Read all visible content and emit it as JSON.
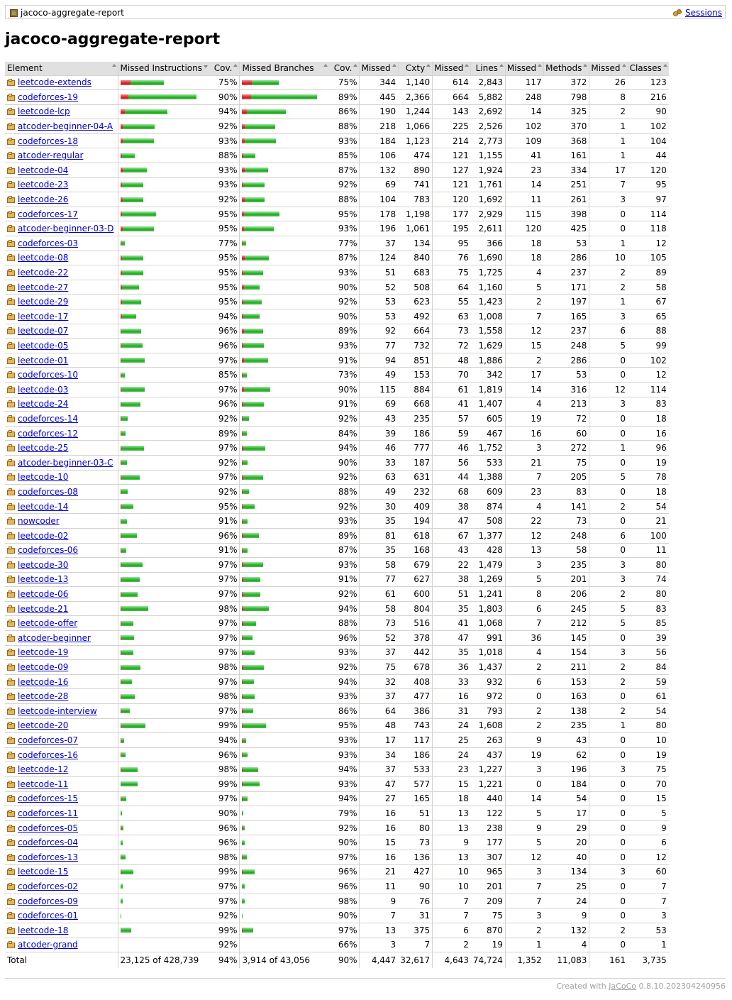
{
  "breadcrumb": {
    "title": "jacoco-aggregate-report",
    "sessions": "Sessions"
  },
  "heading": "jacoco-aggregate-report",
  "header": [
    "Element",
    "Missed Instructions",
    "Cov.",
    "Missed Branches",
    "Cov.",
    "Missed",
    "Cxty",
    "Missed",
    "Lines",
    "Missed",
    "Methods",
    "Missed",
    "Classes"
  ],
  "rows": [
    [
      "leetcode-extends",
      "75%",
      "75%",
      "344",
      "1,140",
      "614",
      "2,843",
      "117",
      "372",
      "26",
      "123"
    ],
    [
      "codeforces-19",
      "90%",
      "89%",
      "445",
      "2,366",
      "664",
      "5,882",
      "248",
      "798",
      "8",
      "216"
    ],
    [
      "leetcode-lcp",
      "94%",
      "86%",
      "190",
      "1,244",
      "143",
      "2,692",
      "14",
      "325",
      "2",
      "90"
    ],
    [
      "atcoder-beginner-04-A",
      "92%",
      "88%",
      "218",
      "1,066",
      "225",
      "2,526",
      "102",
      "370",
      "1",
      "102"
    ],
    [
      "codeforces-18",
      "93%",
      "93%",
      "184",
      "1,123",
      "214",
      "2,773",
      "109",
      "368",
      "1",
      "104"
    ],
    [
      "atcoder-regular",
      "88%",
      "85%",
      "106",
      "474",
      "121",
      "1,155",
      "41",
      "161",
      "1",
      "44"
    ],
    [
      "leetcode-04",
      "93%",
      "87%",
      "132",
      "890",
      "127",
      "1,924",
      "23",
      "334",
      "17",
      "120"
    ],
    [
      "leetcode-23",
      "93%",
      "92%",
      "69",
      "741",
      "121",
      "1,761",
      "14",
      "251",
      "7",
      "95"
    ],
    [
      "leetcode-26",
      "92%",
      "88%",
      "104",
      "783",
      "120",
      "1,692",
      "11",
      "261",
      "3",
      "97"
    ],
    [
      "codeforces-17",
      "95%",
      "95%",
      "178",
      "1,198",
      "177",
      "2,929",
      "115",
      "398",
      "0",
      "114"
    ],
    [
      "atcoder-beginner-03-D",
      "95%",
      "93%",
      "196",
      "1,061",
      "195",
      "2,611",
      "120",
      "425",
      "0",
      "118"
    ],
    [
      "codeforces-03",
      "77%",
      "77%",
      "37",
      "134",
      "95",
      "366",
      "18",
      "53",
      "1",
      "12"
    ],
    [
      "leetcode-08",
      "95%",
      "87%",
      "124",
      "840",
      "76",
      "1,690",
      "18",
      "286",
      "10",
      "105"
    ],
    [
      "leetcode-22",
      "95%",
      "93%",
      "51",
      "683",
      "75",
      "1,725",
      "4",
      "237",
      "2",
      "89"
    ],
    [
      "leetcode-27",
      "95%",
      "90%",
      "52",
      "508",
      "64",
      "1,160",
      "5",
      "171",
      "2",
      "58"
    ],
    [
      "leetcode-29",
      "95%",
      "92%",
      "53",
      "623",
      "55",
      "1,423",
      "2",
      "197",
      "1",
      "67"
    ],
    [
      "leetcode-17",
      "94%",
      "90%",
      "53",
      "492",
      "63",
      "1,008",
      "7",
      "165",
      "3",
      "65"
    ],
    [
      "leetcode-07",
      "96%",
      "89%",
      "92",
      "664",
      "73",
      "1,558",
      "12",
      "237",
      "6",
      "88"
    ],
    [
      "leetcode-05",
      "96%",
      "93%",
      "77",
      "732",
      "72",
      "1,629",
      "15",
      "248",
      "5",
      "99"
    ],
    [
      "leetcode-01",
      "97%",
      "91%",
      "94",
      "851",
      "48",
      "1,886",
      "2",
      "286",
      "0",
      "102"
    ],
    [
      "codeforces-10",
      "85%",
      "73%",
      "49",
      "153",
      "70",
      "342",
      "17",
      "53",
      "0",
      "12"
    ],
    [
      "leetcode-03",
      "97%",
      "90%",
      "115",
      "884",
      "61",
      "1,819",
      "14",
      "316",
      "12",
      "114"
    ],
    [
      "leetcode-24",
      "96%",
      "91%",
      "69",
      "668",
      "41",
      "1,407",
      "4",
      "213",
      "3",
      "83"
    ],
    [
      "codeforces-14",
      "92%",
      "92%",
      "43",
      "235",
      "57",
      "605",
      "19",
      "72",
      "0",
      "18"
    ],
    [
      "codeforces-12",
      "89%",
      "84%",
      "39",
      "186",
      "59",
      "467",
      "16",
      "60",
      "0",
      "16"
    ],
    [
      "leetcode-25",
      "97%",
      "94%",
      "46",
      "777",
      "46",
      "1,752",
      "3",
      "272",
      "1",
      "96"
    ],
    [
      "atcoder-beginner-03-C",
      "92%",
      "90%",
      "33",
      "187",
      "56",
      "533",
      "21",
      "75",
      "0",
      "19"
    ],
    [
      "leetcode-10",
      "97%",
      "92%",
      "63",
      "631",
      "44",
      "1,388",
      "7",
      "205",
      "5",
      "78"
    ],
    [
      "codeforces-08",
      "92%",
      "88%",
      "49",
      "232",
      "68",
      "609",
      "23",
      "83",
      "0",
      "18"
    ],
    [
      "leetcode-14",
      "95%",
      "92%",
      "30",
      "409",
      "38",
      "874",
      "4",
      "141",
      "2",
      "54"
    ],
    [
      "nowcoder",
      "91%",
      "93%",
      "35",
      "194",
      "47",
      "508",
      "22",
      "73",
      "0",
      "21"
    ],
    [
      "leetcode-02",
      "96%",
      "89%",
      "81",
      "618",
      "67",
      "1,377",
      "12",
      "248",
      "6",
      "100"
    ],
    [
      "codeforces-06",
      "91%",
      "87%",
      "35",
      "168",
      "43",
      "428",
      "13",
      "58",
      "0",
      "11"
    ],
    [
      "leetcode-30",
      "97%",
      "93%",
      "58",
      "679",
      "22",
      "1,479",
      "3",
      "235",
      "3",
      "80"
    ],
    [
      "leetcode-13",
      "97%",
      "91%",
      "77",
      "627",
      "38",
      "1,269",
      "5",
      "201",
      "3",
      "74"
    ],
    [
      "leetcode-06",
      "97%",
      "92%",
      "61",
      "600",
      "51",
      "1,241",
      "8",
      "206",
      "2",
      "80"
    ],
    [
      "leetcode-21",
      "98%",
      "94%",
      "58",
      "804",
      "35",
      "1,803",
      "6",
      "245",
      "5",
      "83"
    ],
    [
      "leetcode-offer",
      "97%",
      "88%",
      "73",
      "516",
      "41",
      "1,068",
      "7",
      "212",
      "5",
      "85"
    ],
    [
      "atcoder-beginner",
      "97%",
      "96%",
      "52",
      "378",
      "47",
      "991",
      "36",
      "145",
      "0",
      "39"
    ],
    [
      "leetcode-19",
      "97%",
      "93%",
      "37",
      "442",
      "35",
      "1,018",
      "4",
      "154",
      "3",
      "56"
    ],
    [
      "leetcode-09",
      "98%",
      "92%",
      "75",
      "678",
      "36",
      "1,437",
      "2",
      "211",
      "2",
      "84"
    ],
    [
      "leetcode-16",
      "97%",
      "94%",
      "32",
      "408",
      "33",
      "932",
      "6",
      "153",
      "2",
      "59"
    ],
    [
      "leetcode-28",
      "98%",
      "93%",
      "37",
      "477",
      "16",
      "972",
      "0",
      "163",
      "0",
      "61"
    ],
    [
      "leetcode-interview",
      "97%",
      "86%",
      "64",
      "386",
      "31",
      "793",
      "2",
      "138",
      "2",
      "54"
    ],
    [
      "leetcode-20",
      "99%",
      "95%",
      "48",
      "743",
      "24",
      "1,608",
      "2",
      "235",
      "1",
      "80"
    ],
    [
      "codeforces-07",
      "94%",
      "93%",
      "17",
      "117",
      "25",
      "263",
      "9",
      "43",
      "0",
      "10"
    ],
    [
      "codeforces-16",
      "96%",
      "93%",
      "34",
      "186",
      "24",
      "437",
      "19",
      "62",
      "0",
      "19"
    ],
    [
      "leetcode-12",
      "98%",
      "94%",
      "37",
      "533",
      "23",
      "1,227",
      "3",
      "196",
      "3",
      "75"
    ],
    [
      "leetcode-11",
      "99%",
      "93%",
      "47",
      "577",
      "15",
      "1,221",
      "0",
      "184",
      "0",
      "70"
    ],
    [
      "codeforces-15",
      "97%",
      "94%",
      "27",
      "165",
      "18",
      "440",
      "14",
      "54",
      "0",
      "15"
    ],
    [
      "codeforces-11",
      "90%",
      "79%",
      "16",
      "51",
      "13",
      "122",
      "5",
      "17",
      "0",
      "5"
    ],
    [
      "codeforces-05",
      "96%",
      "92%",
      "16",
      "80",
      "13",
      "238",
      "9",
      "29",
      "0",
      "9"
    ],
    [
      "codeforces-04",
      "96%",
      "90%",
      "15",
      "73",
      "9",
      "177",
      "5",
      "20",
      "0",
      "6"
    ],
    [
      "codeforces-13",
      "98%",
      "97%",
      "16",
      "136",
      "13",
      "307",
      "12",
      "40",
      "0",
      "12"
    ],
    [
      "leetcode-15",
      "99%",
      "96%",
      "21",
      "427",
      "10",
      "965",
      "3",
      "134",
      "3",
      "60"
    ],
    [
      "codeforces-02",
      "97%",
      "96%",
      "11",
      "90",
      "10",
      "201",
      "7",
      "25",
      "0",
      "7"
    ],
    [
      "codeforces-09",
      "97%",
      "98%",
      "9",
      "76",
      "7",
      "209",
      "7",
      "24",
      "0",
      "7"
    ],
    [
      "codeforces-01",
      "92%",
      "90%",
      "7",
      "31",
      "7",
      "75",
      "3",
      "9",
      "0",
      "3"
    ],
    [
      "leetcode-18",
      "99%",
      "97%",
      "13",
      "375",
      "6",
      "870",
      "2",
      "132",
      "2",
      "53"
    ],
    [
      "atcoder-grand",
      "92%",
      "66%",
      "3",
      "7",
      "2",
      "19",
      "1",
      "4",
      "0",
      "1"
    ]
  ],
  "bars": [
    [
      [
        14,
        47
      ],
      [
        14,
        38
      ]
    ],
    [
      [
        11,
        96
      ],
      [
        13,
        93
      ]
    ],
    [
      [
        6,
        60
      ],
      [
        7,
        55
      ]
    ],
    [
      [
        3,
        45
      ],
      [
        4,
        43
      ]
    ],
    [
      [
        3,
        44
      ],
      [
        4,
        44
      ]
    ],
    [
      [
        2,
        18
      ],
      [
        2,
        17
      ]
    ],
    [
      [
        3,
        34
      ],
      [
        4,
        33
      ]
    ],
    [
      [
        2,
        30
      ],
      [
        2,
        30
      ]
    ],
    [
      [
        3,
        29
      ],
      [
        4,
        28
      ]
    ],
    [
      [
        2,
        48
      ],
      [
        3,
        50
      ]
    ],
    [
      [
        3,
        44
      ],
      [
        3,
        42
      ]
    ],
    [
      [
        1,
        5
      ],
      [
        1,
        5
      ]
    ],
    [
      [
        2,
        30
      ],
      [
        4,
        34
      ]
    ],
    [
      [
        2,
        30
      ],
      [
        2,
        28
      ]
    ],
    [
      [
        2,
        24
      ],
      [
        3,
        22
      ]
    ],
    [
      [
        2,
        27
      ],
      [
        2,
        26
      ]
    ],
    [
      [
        2,
        20
      ],
      [
        2,
        23
      ]
    ],
    [
      [
        1,
        28
      ],
      [
        3,
        27
      ]
    ],
    [
      [
        1,
        30
      ],
      [
        2,
        29
      ]
    ],
    [
      [
        1,
        33
      ],
      [
        3,
        34
      ]
    ],
    [
      [
        1,
        5
      ],
      [
        1,
        6
      ]
    ],
    [
      [
        1,
        33
      ],
      [
        3,
        37
      ]
    ],
    [
      [
        1,
        27
      ],
      [
        2,
        29
      ]
    ],
    [
      [
        1,
        9
      ],
      [
        1,
        9
      ]
    ],
    [
      [
        1,
        6
      ],
      [
        1,
        6
      ]
    ],
    [
      [
        1,
        32
      ],
      [
        2,
        31
      ]
    ],
    [
      [
        1,
        8
      ],
      [
        1,
        7
      ]
    ],
    [
      [
        1,
        26
      ],
      [
        2,
        28
      ]
    ],
    [
      [
        1,
        9
      ],
      [
        1,
        9
      ]
    ],
    [
      [
        1,
        17
      ],
      [
        1,
        17
      ]
    ],
    [
      [
        1,
        8
      ],
      [
        1,
        7
      ]
    ],
    [
      [
        1,
        22
      ],
      [
        2,
        22
      ]
    ],
    [
      [
        1,
        7
      ],
      [
        1,
        7
      ]
    ],
    [
      [
        1,
        30
      ],
      [
        2,
        28
      ]
    ],
    [
      [
        1,
        26
      ],
      [
        2,
        24
      ]
    ],
    [
      [
        1,
        23
      ],
      [
        2,
        24
      ]
    ],
    [
      [
        1,
        38
      ],
      [
        2,
        36
      ]
    ],
    [
      [
        1,
        17
      ],
      [
        2,
        18
      ]
    ],
    [
      [
        1,
        18
      ],
      [
        1,
        14
      ]
    ],
    [
      [
        1,
        17
      ],
      [
        1,
        17
      ]
    ],
    [
      [
        1,
        27
      ],
      [
        2,
        29
      ]
    ],
    [
      [
        1,
        15
      ],
      [
        1,
        16
      ]
    ],
    [
      [
        1,
        19
      ],
      [
        1,
        17
      ]
    ],
    [
      [
        1,
        12
      ],
      [
        2,
        14
      ]
    ],
    [
      [
        1,
        34
      ],
      [
        1,
        33
      ]
    ],
    [
      [
        1,
        4
      ],
      [
        1,
        5
      ]
    ],
    [
      [
        1,
        6
      ],
      [
        1,
        7
      ]
    ],
    [
      [
        1,
        23
      ],
      [
        1,
        22
      ]
    ],
    [
      [
        0,
        24
      ],
      [
        1,
        24
      ]
    ],
    [
      [
        1,
        7
      ],
      [
        1,
        7
      ]
    ],
    [
      [
        0,
        2
      ],
      [
        0,
        2
      ]
    ],
    [
      [
        1,
        3
      ],
      [
        1,
        3
      ]
    ],
    [
      [
        0,
        3
      ],
      [
        0,
        4
      ]
    ],
    [
      [
        1,
        6
      ],
      [
        1,
        6
      ]
    ],
    [
      [
        1,
        17
      ],
      [
        1,
        17
      ]
    ],
    [
      [
        0,
        3
      ],
      [
        0,
        4
      ]
    ],
    [
      [
        0,
        3
      ],
      [
        0,
        4
      ]
    ],
    [
      [
        0,
        1
      ],
      [
        0,
        1
      ]
    ],
    [
      [
        0,
        15
      ],
      [
        1,
        15
      ]
    ],
    [
      [
        0,
        0
      ],
      [
        0,
        0
      ]
    ]
  ],
  "total": [
    "Total",
    "23,125 of 428,739",
    "94%",
    "3,914 of 43,056",
    "90%",
    "4,447",
    "32,617",
    "4,643",
    "74,724",
    "1,352",
    "11,083",
    "161",
    "3,735"
  ],
  "footer": {
    "prefix": "Created with ",
    "link": "JaCoCo",
    "version": " 0.8.10.202304240956"
  }
}
